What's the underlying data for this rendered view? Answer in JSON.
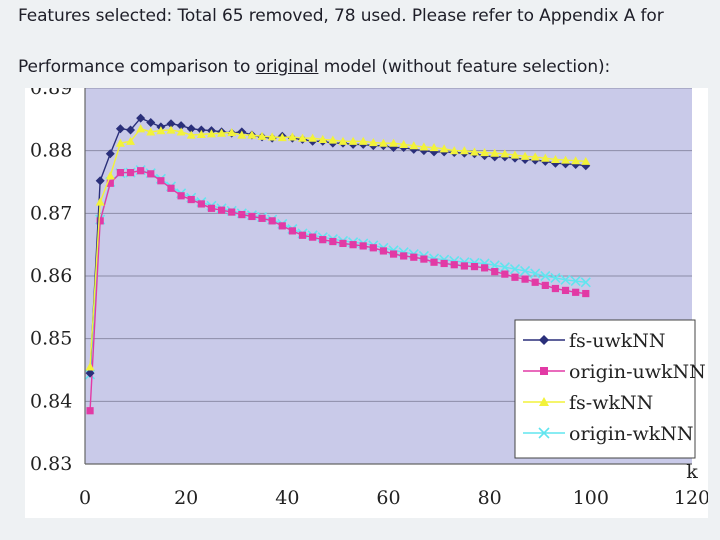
{
  "header": {
    "features_label": "Features selected:",
    "features_text": " Total 65 removed, 78 used. Please refer to Appendix A for"
  },
  "subheader": {
    "text_pre": "Performance comparison to ",
    "text_underlined": "original",
    "text_post": " model (without feature selection):"
  },
  "colors": {
    "plot_bg": "#c9cae9",
    "fs_uwknn": "#2a2f7a",
    "origin_uwknn": "#e23aa5",
    "fs_wknn": "#f2f23a",
    "origin_wknn": "#60e5ef"
  },
  "chart_data": {
    "type": "line",
    "xlabel": "k",
    "ylabel": "",
    "xlim": [
      0,
      120
    ],
    "ylim": [
      0.83,
      0.89
    ],
    "xticks": [
      0,
      20,
      40,
      60,
      80,
      100,
      120
    ],
    "yticks": [
      0.83,
      0.84,
      0.85,
      0.86,
      0.87,
      0.88,
      0.89
    ],
    "grid": "horizontal",
    "legend_position": "bottom-right",
    "x": [
      1,
      3,
      5,
      7,
      9,
      11,
      13,
      15,
      17,
      19,
      21,
      23,
      25,
      27,
      29,
      31,
      33,
      35,
      37,
      39,
      41,
      43,
      45,
      47,
      49,
      51,
      53,
      55,
      57,
      59,
      61,
      63,
      65,
      67,
      69,
      71,
      73,
      75,
      77,
      79,
      81,
      83,
      85,
      87,
      89,
      91,
      93,
      95,
      97,
      99
    ],
    "series": [
      {
        "name": "fs-uwkNN",
        "marker": "diamond",
        "color": "#2a2f7a",
        "values": [
          0.8445,
          0.8752,
          0.8795,
          0.8835,
          0.8833,
          0.8852,
          0.8845,
          0.8838,
          0.8843,
          0.884,
          0.8835,
          0.8833,
          0.8832,
          0.883,
          0.8828,
          0.883,
          0.8825,
          0.8822,
          0.882,
          0.8823,
          0.882,
          0.8818,
          0.8815,
          0.8815,
          0.8812,
          0.8812,
          0.881,
          0.881,
          0.8808,
          0.8808,
          0.8805,
          0.8805,
          0.8802,
          0.88,
          0.8798,
          0.8798,
          0.8797,
          0.8796,
          0.8795,
          0.8792,
          0.879,
          0.879,
          0.8788,
          0.8786,
          0.8785,
          0.8783,
          0.878,
          0.8779,
          0.8778,
          0.8776
        ]
      },
      {
        "name": "origin-uwkNN",
        "marker": "square",
        "color": "#e23aa5",
        "values": [
          0.8385,
          0.8688,
          0.8748,
          0.8765,
          0.8765,
          0.8768,
          0.8763,
          0.8752,
          0.874,
          0.8728,
          0.8722,
          0.8715,
          0.8708,
          0.8705,
          0.8702,
          0.8698,
          0.8695,
          0.8692,
          0.8688,
          0.868,
          0.8672,
          0.8665,
          0.8662,
          0.8658,
          0.8655,
          0.8652,
          0.865,
          0.8648,
          0.8645,
          0.864,
          0.8635,
          0.8632,
          0.863,
          0.8627,
          0.8622,
          0.862,
          0.8618,
          0.8616,
          0.8615,
          0.8613,
          0.8607,
          0.8603,
          0.8598,
          0.8595,
          0.859,
          0.8585,
          0.858,
          0.8577,
          0.8574,
          0.8572
        ]
      },
      {
        "name": "fs-wkNN",
        "marker": "triangle",
        "color": "#f2f23a",
        "values": [
          0.8455,
          0.8718,
          0.876,
          0.8812,
          0.8815,
          0.8835,
          0.883,
          0.8832,
          0.8833,
          0.883,
          0.8825,
          0.8826,
          0.8827,
          0.8828,
          0.8829,
          0.8825,
          0.8825,
          0.8823,
          0.8822,
          0.8821,
          0.8822,
          0.882,
          0.882,
          0.8818,
          0.8817,
          0.8815,
          0.8815,
          0.8815,
          0.8813,
          0.8812,
          0.8812,
          0.881,
          0.8808,
          0.8806,
          0.8805,
          0.8803,
          0.88,
          0.88,
          0.8798,
          0.8797,
          0.8796,
          0.8795,
          0.8793,
          0.8791,
          0.879,
          0.8788,
          0.8786,
          0.8785,
          0.8784,
          0.8783
        ]
      },
      {
        "name": "origin-wkNN",
        "marker": "x",
        "color": "#60e5ef",
        "values": [
          0.8443,
          0.869,
          0.875,
          0.8764,
          0.8765,
          0.8769,
          0.8764,
          0.8755,
          0.8743,
          0.8732,
          0.8725,
          0.8718,
          0.8712,
          0.8708,
          0.8704,
          0.87,
          0.8697,
          0.8694,
          0.869,
          0.8683,
          0.8675,
          0.8668,
          0.8665,
          0.8662,
          0.8659,
          0.8656,
          0.8654,
          0.8652,
          0.8649,
          0.8645,
          0.8641,
          0.8638,
          0.8635,
          0.8632,
          0.8628,
          0.8626,
          0.8624,
          0.8622,
          0.8621,
          0.862,
          0.8617,
          0.8614,
          0.8611,
          0.8608,
          0.8604,
          0.86,
          0.8597,
          0.8594,
          0.8592,
          0.859
        ]
      }
    ]
  }
}
